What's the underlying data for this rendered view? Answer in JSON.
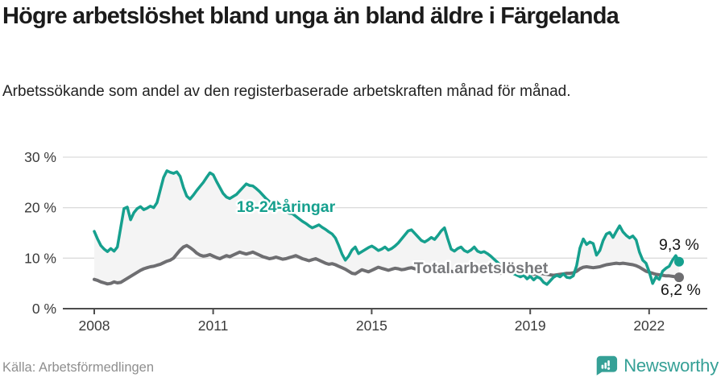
{
  "header": {
    "title": "Högre arbetslöshet bland unga än bland äldre i Färgelanda",
    "subtitle": "Arbetssökande som andel av den registerbaserade arbetskraften månad för månad."
  },
  "footer": {
    "source": "Källa: Arbetsförmedlingen",
    "brand": "Newsworthy"
  },
  "colors": {
    "accent_teal": "#16a08e",
    "line_gray": "#6e6e71",
    "label_gray": "#77787b",
    "grid": "#dcdcdc",
    "axis": "#4d4d4d",
    "axis_text": "#3a3a3a",
    "end_label_text": "#141414",
    "band_fill": "#f4f4f4",
    "brand_teal": "#35a096",
    "source_text": "#8f8f8f"
  },
  "chart_data": {
    "type": "line",
    "title": "Högre arbetslöshet bland unga än bland äldre i Färgelanda",
    "subtitle": "Arbetssökande som andel av den registerbaserade arbetskraften månad för månad.",
    "frequency": "monthly",
    "x_start": "2008-01",
    "x_end": "2022-10",
    "x_tick_years": [
      2008,
      2011,
      2015,
      2019,
      2022
    ],
    "x_tick_labels": [
      "2008",
      "2011",
      "2015",
      "2019",
      "2022"
    ],
    "y_ticks": [
      0,
      10,
      20,
      30
    ],
    "y_tick_labels": [
      "0 %",
      "10 %",
      "20 %",
      "30 %"
    ],
    "ylim": [
      0,
      32
    ],
    "grid": true,
    "legend_position": "inline-labels",
    "band_between_series": true,
    "series": [
      {
        "name": "18-24-åringar",
        "color": "#16a08e",
        "end_value": 9.3,
        "end_label": "9,3 %",
        "values": [
          15.3,
          13.8,
          12.5,
          11.8,
          11.3,
          11.9,
          11.4,
          12.2,
          16.0,
          19.8,
          20.1,
          17.6,
          19.0,
          19.8,
          20.2,
          19.6,
          19.9,
          20.3,
          20.0,
          21.0,
          23.5,
          26.0,
          27.3,
          27.0,
          26.8,
          27.1,
          26.2,
          24.0,
          22.3,
          21.7,
          22.5,
          23.4,
          24.2,
          25.0,
          26.0,
          26.9,
          26.5,
          25.2,
          24.0,
          22.8,
          22.1,
          21.8,
          22.2,
          22.6,
          23.3,
          24.0,
          24.7,
          24.4,
          24.3,
          23.8,
          23.2,
          22.5,
          21.8,
          21.2,
          20.8,
          21.3,
          20.6,
          20.0,
          19.4,
          18.9,
          18.8,
          18.3,
          17.8,
          17.3,
          16.9,
          16.4,
          16.0,
          16.3,
          16.6,
          16.1,
          15.7,
          15.2,
          14.8,
          14.0,
          12.5,
          10.8,
          9.6,
          10.4,
          11.6,
          12.2,
          10.9,
          11.3,
          11.7,
          12.1,
          12.4,
          12.0,
          11.5,
          11.8,
          12.2,
          11.6,
          11.9,
          12.4,
          13.0,
          13.8,
          14.6,
          15.4,
          15.6,
          14.9,
          14.2,
          13.5,
          13.2,
          13.6,
          14.1,
          13.7,
          14.5,
          15.4,
          16.0,
          13.8,
          11.8,
          11.4,
          11.9,
          12.2,
          11.5,
          11.2,
          11.6,
          12.2,
          11.4,
          11.1,
          11.3,
          10.9,
          10.4,
          9.8,
          9.2,
          8.6,
          8.0,
          7.5,
          7.2,
          6.9,
          6.6,
          6.3,
          6.6,
          5.9,
          6.4,
          5.7,
          6.3,
          6.0,
          5.2,
          4.8,
          5.5,
          6.2,
          6.6,
          6.3,
          6.9,
          6.2,
          6.1,
          6.5,
          8.5,
          12.0,
          13.8,
          12.7,
          13.2,
          12.9,
          10.6,
          11.5,
          13.5,
          14.8,
          15.1,
          14.1,
          15.3,
          16.4,
          15.2,
          14.5,
          14.0,
          14.4,
          13.6,
          11.2,
          9.6,
          9.0,
          7.2,
          5.0,
          6.3,
          5.8,
          7.4,
          8.0,
          8.4,
          9.6,
          10.5,
          9.3
        ]
      },
      {
        "name": "Total arbetslöshet",
        "color": "#6e6e71",
        "end_value": 6.2,
        "end_label": "6,2 %",
        "values": [
          5.8,
          5.6,
          5.3,
          5.1,
          4.9,
          5.0,
          5.3,
          5.1,
          5.2,
          5.6,
          6.0,
          6.4,
          6.8,
          7.2,
          7.6,
          7.9,
          8.1,
          8.3,
          8.4,
          8.6,
          8.8,
          9.1,
          9.4,
          9.6,
          10.0,
          10.8,
          11.6,
          12.2,
          12.5,
          12.1,
          11.6,
          11.0,
          10.6,
          10.4,
          10.5,
          10.7,
          10.4,
          10.1,
          9.9,
          10.2,
          10.5,
          10.3,
          10.6,
          10.9,
          11.2,
          11.0,
          10.8,
          11.0,
          11.2,
          10.9,
          10.6,
          10.3,
          10.1,
          9.9,
          10.0,
          10.2,
          10.0,
          9.8,
          9.9,
          10.1,
          10.3,
          10.5,
          10.2,
          9.9,
          9.7,
          9.5,
          9.7,
          9.9,
          9.6,
          9.3,
          9.0,
          8.8,
          8.9,
          8.7,
          8.4,
          8.1,
          7.8,
          7.4,
          7.0,
          6.9,
          7.3,
          7.7,
          7.5,
          7.3,
          7.6,
          7.9,
          8.2,
          8.0,
          7.8,
          7.6,
          7.8,
          8.0,
          7.9,
          7.7,
          7.8,
          8.0,
          8.1,
          7.9,
          7.7,
          7.8,
          8.0,
          7.9,
          7.7,
          7.6,
          7.8,
          7.9,
          7.7,
          7.5,
          7.4,
          7.3,
          7.4,
          7.5,
          7.4,
          7.2,
          7.3,
          7.4,
          7.3,
          7.2,
          7.3,
          7.4,
          7.3,
          7.2,
          7.1,
          7.0,
          7.1,
          7.2,
          7.1,
          7.0,
          6.9,
          7.0,
          7.1,
          7.0,
          6.9,
          6.8,
          6.9,
          7.0,
          6.9,
          6.8,
          6.7,
          6.6,
          6.7,
          6.8,
          6.9,
          7.0,
          7.0,
          7.1,
          7.4,
          7.9,
          8.2,
          8.3,
          8.2,
          8.1,
          8.2,
          8.3,
          8.5,
          8.7,
          8.8,
          8.9,
          9.0,
          8.9,
          9.0,
          8.9,
          8.8,
          8.7,
          8.5,
          8.2,
          7.8,
          7.4,
          7.2,
          7.0,
          6.8,
          6.7,
          6.6,
          6.5,
          6.5,
          6.4,
          6.3,
          6.2
        ]
      }
    ]
  }
}
